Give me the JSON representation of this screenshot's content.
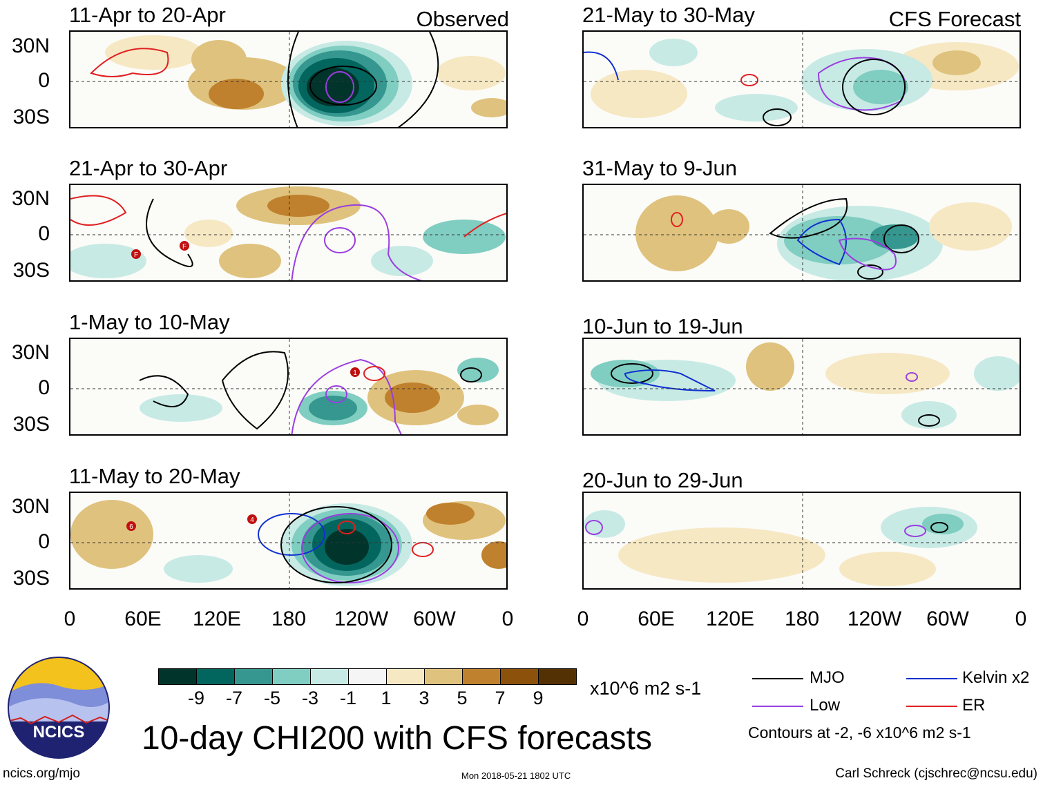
{
  "columns": [
    {
      "tag": "Observed",
      "panels": [
        {
          "title": "11-Apr to 20-Apr"
        },
        {
          "title": "21-Apr to 30-Apr"
        },
        {
          "title": "1-May to 10-May"
        },
        {
          "title": "11-May to 20-May"
        }
      ]
    },
    {
      "tag": "CFS Forecast",
      "panels": [
        {
          "title": "21-May to 30-May"
        },
        {
          "title": "31-May to 9-Jun"
        },
        {
          "title": "10-Jun to 19-Jun"
        },
        {
          "title": "20-Jun to 29-Jun"
        }
      ]
    }
  ],
  "lat_labels": [
    "30N",
    "0",
    "30S"
  ],
  "lon_labels": [
    "0",
    "60E",
    "120E",
    "180",
    "120W",
    "60W",
    "0"
  ],
  "colorbar": {
    "colors": [
      "#01352c",
      "#03665e",
      "#35978f",
      "#80cdc1",
      "#c7eae5",
      "#f5f5f5",
      "#f6e8c3",
      "#dfc27d",
      "#bf812d",
      "#8c510a",
      "#543005"
    ],
    "labels": [
      "-9",
      "-7",
      "-5",
      "-3",
      "-1",
      "1",
      "3",
      "5",
      "7",
      "9"
    ],
    "units": "x10^6 m2 s-1"
  },
  "legend": {
    "items": [
      {
        "label": "MJO",
        "color": "#000000"
      },
      {
        "label": "Kelvin x2",
        "color": "#1030d0"
      },
      {
        "label": "Low",
        "color": "#9a3ee0"
      },
      {
        "label": "ER",
        "color": "#e02020"
      }
    ],
    "note": "Contours at -2, -6 x10^6 m2 s-1"
  },
  "main_title": "10-day CHI200 with CFS forecasts",
  "logo_text": "NCICS",
  "footer": {
    "left": "ncics.org/mjo",
    "center": "Mon 2018-05-21 1802 UTC",
    "right": "Carl Schreck (cjschrec@ncsu.edu)"
  },
  "storm_markers": [
    {
      "label": "F"
    },
    {
      "label": "F"
    },
    {
      "label": "1"
    },
    {
      "label": "4"
    },
    {
      "label": "6"
    }
  ]
}
